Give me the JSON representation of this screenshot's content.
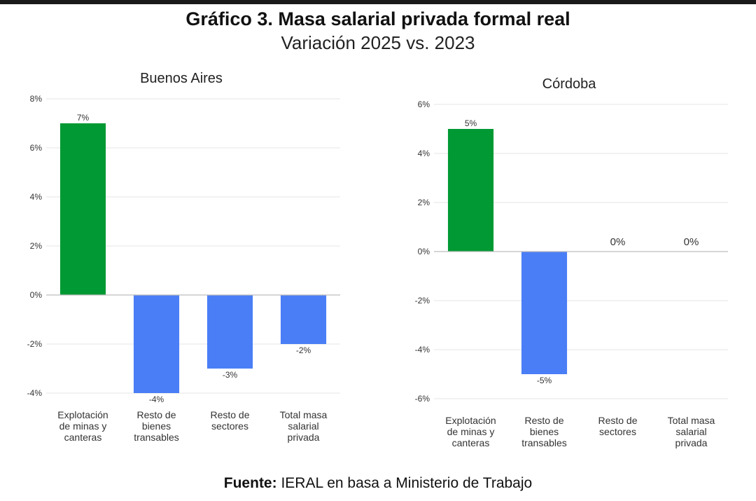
{
  "header": {
    "title": "Gráfico 3. Masa salarial privada formal real",
    "subtitle": "Variación 2025 vs. 2023"
  },
  "footer": {
    "source_label": "Fuente:",
    "source_text": "IERAL en basa a Ministerio de Trabajo"
  },
  "colors": {
    "positive": "#009933",
    "negative": "#4a7ef6",
    "grid": "#e4e4e4",
    "axis": "#bdbdbd",
    "text": "#333333"
  },
  "chart_data": [
    {
      "type": "bar",
      "title": "Buenos Aires",
      "categories": [
        [
          "Explotación",
          "de minas y",
          "canteras"
        ],
        [
          "Resto de",
          "bienes",
          "transables"
        ],
        [
          "Resto de",
          "sectores"
        ],
        [
          "Total masa",
          "salarial",
          "privada"
        ]
      ],
      "values": [
        7,
        -4,
        -3,
        -2
      ],
      "value_labels": [
        "7%",
        "-4%",
        "-3%",
        "-2%"
      ],
      "yticks": [
        8,
        6,
        4,
        2,
        0,
        -2,
        -4
      ],
      "ytick_labels": [
        "8%",
        "6%",
        "4%",
        "2%",
        "0%",
        "-2%",
        "-4%"
      ],
      "ylim": [
        -4,
        8
      ],
      "grid": true
    },
    {
      "type": "bar",
      "title": "Córdoba",
      "categories": [
        [
          "Explotación",
          "de minas y",
          "canteras"
        ],
        [
          "Resto de",
          "bienes",
          "transables"
        ],
        [
          "Resto de",
          "sectores"
        ],
        [
          "Total masa",
          "salarial",
          "privada"
        ]
      ],
      "values": [
        5,
        -5,
        0,
        0
      ],
      "value_labels": [
        "5%",
        "-5%",
        "0%",
        "0%"
      ],
      "yticks": [
        6,
        4,
        2,
        0,
        -2,
        -4,
        -6
      ],
      "ytick_labels": [
        "6%",
        "4%",
        "2%",
        "0%",
        "-2%",
        "-4%",
        "-6%"
      ],
      "ylim": [
        -6,
        6
      ],
      "grid": true
    }
  ]
}
